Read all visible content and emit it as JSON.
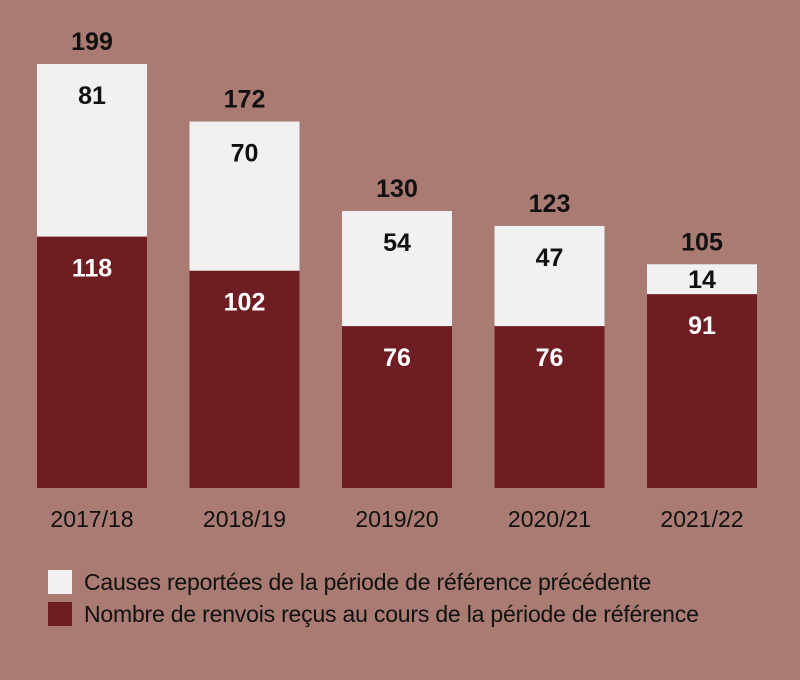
{
  "colors": {
    "background": "#a97b73",
    "carried_over": "#f1f1f2",
    "received": "#6e1e23"
  },
  "chart_data": {
    "type": "bar",
    "stacked": true,
    "categories": [
      "2017/18",
      "2018/19",
      "2019/20",
      "2020/21",
      "2021/22"
    ],
    "series": [
      {
        "name": "Nombre de renvois reçus au cours de la période de référence",
        "values": [
          118,
          102,
          76,
          76,
          91
        ],
        "color": "#6e1e23"
      },
      {
        "name": "Causes reportées de la période de référence précédente",
        "values": [
          81,
          70,
          54,
          47,
          14
        ],
        "color": "#f1f1f2"
      }
    ],
    "totals": [
      199,
      172,
      130,
      123,
      105
    ],
    "ylim": [
      0,
      199
    ],
    "grid": false,
    "legend_position": "bottom-left"
  },
  "legend": {
    "items": [
      {
        "label": "Causes reportées de la période de référence précédente",
        "color": "#f1f1f2"
      },
      {
        "label": "Nombre de renvois reçus au cours de la période de référence",
        "color": "#6e1e23"
      }
    ]
  }
}
